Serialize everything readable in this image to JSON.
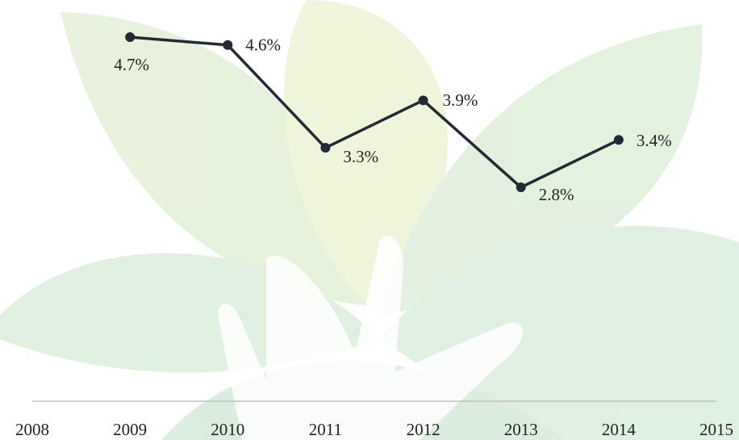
{
  "chart_data": {
    "type": "line",
    "x": [
      2009,
      2010,
      2011,
      2012,
      2013,
      2014
    ],
    "xlim": [
      2008,
      2015
    ],
    "xticks": [
      2008,
      2009,
      2010,
      2011,
      2012,
      2013,
      2014,
      2015
    ],
    "series": [
      {
        "color": "#232a33",
        "values": [
          4.7,
          4.6,
          3.3,
          3.9,
          2.8,
          3.4
        ],
        "value_labels": [
          "4.7%",
          "4.6%",
          "3.3%",
          "3.9%",
          "2.8%",
          "3.4%"
        ]
      }
    ]
  }
}
